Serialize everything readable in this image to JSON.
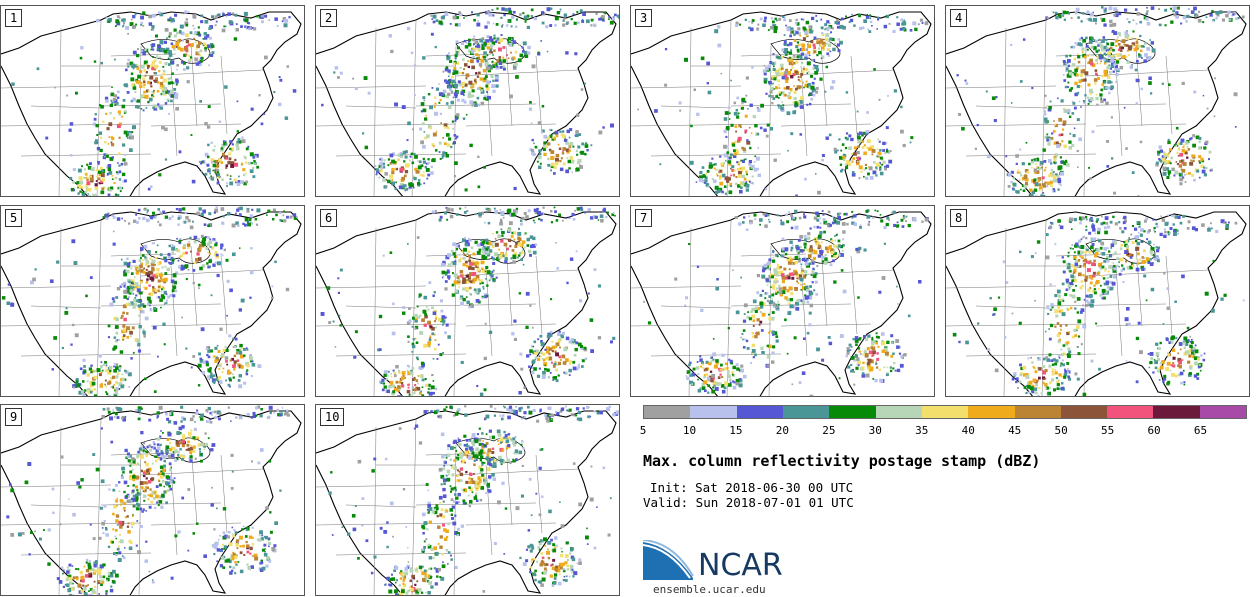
{
  "members": [
    "1",
    "2",
    "3",
    "4",
    "5",
    "6",
    "7",
    "8",
    "9",
    "10"
  ],
  "colorbar": {
    "colors": [
      "#a0a0a0",
      "#b7c1eb",
      "#5557d4",
      "#4a9595",
      "#078a07",
      "#b7d5b7",
      "#f3df6b",
      "#efab1b",
      "#bb8434",
      "#8c5539",
      "#f1537d",
      "#6b1a3b",
      "#a84aa7"
    ],
    "ticks": [
      "5",
      "10",
      "15",
      "20",
      "25",
      "30",
      "35",
      "40",
      "45",
      "50",
      "55",
      "60",
      "65"
    ]
  },
  "title": "Max. column reflectivity postage stamp (dBZ)",
  "init": "Init: Sat 2018-06-30 00 UTC",
  "valid": "Valid: Sun 2018-07-01 01 UTC",
  "logo": {
    "text": "NCAR",
    "color": "#173a63",
    "accent": "#1f6fb3"
  },
  "url": "ensemble.ucar.edu"
}
